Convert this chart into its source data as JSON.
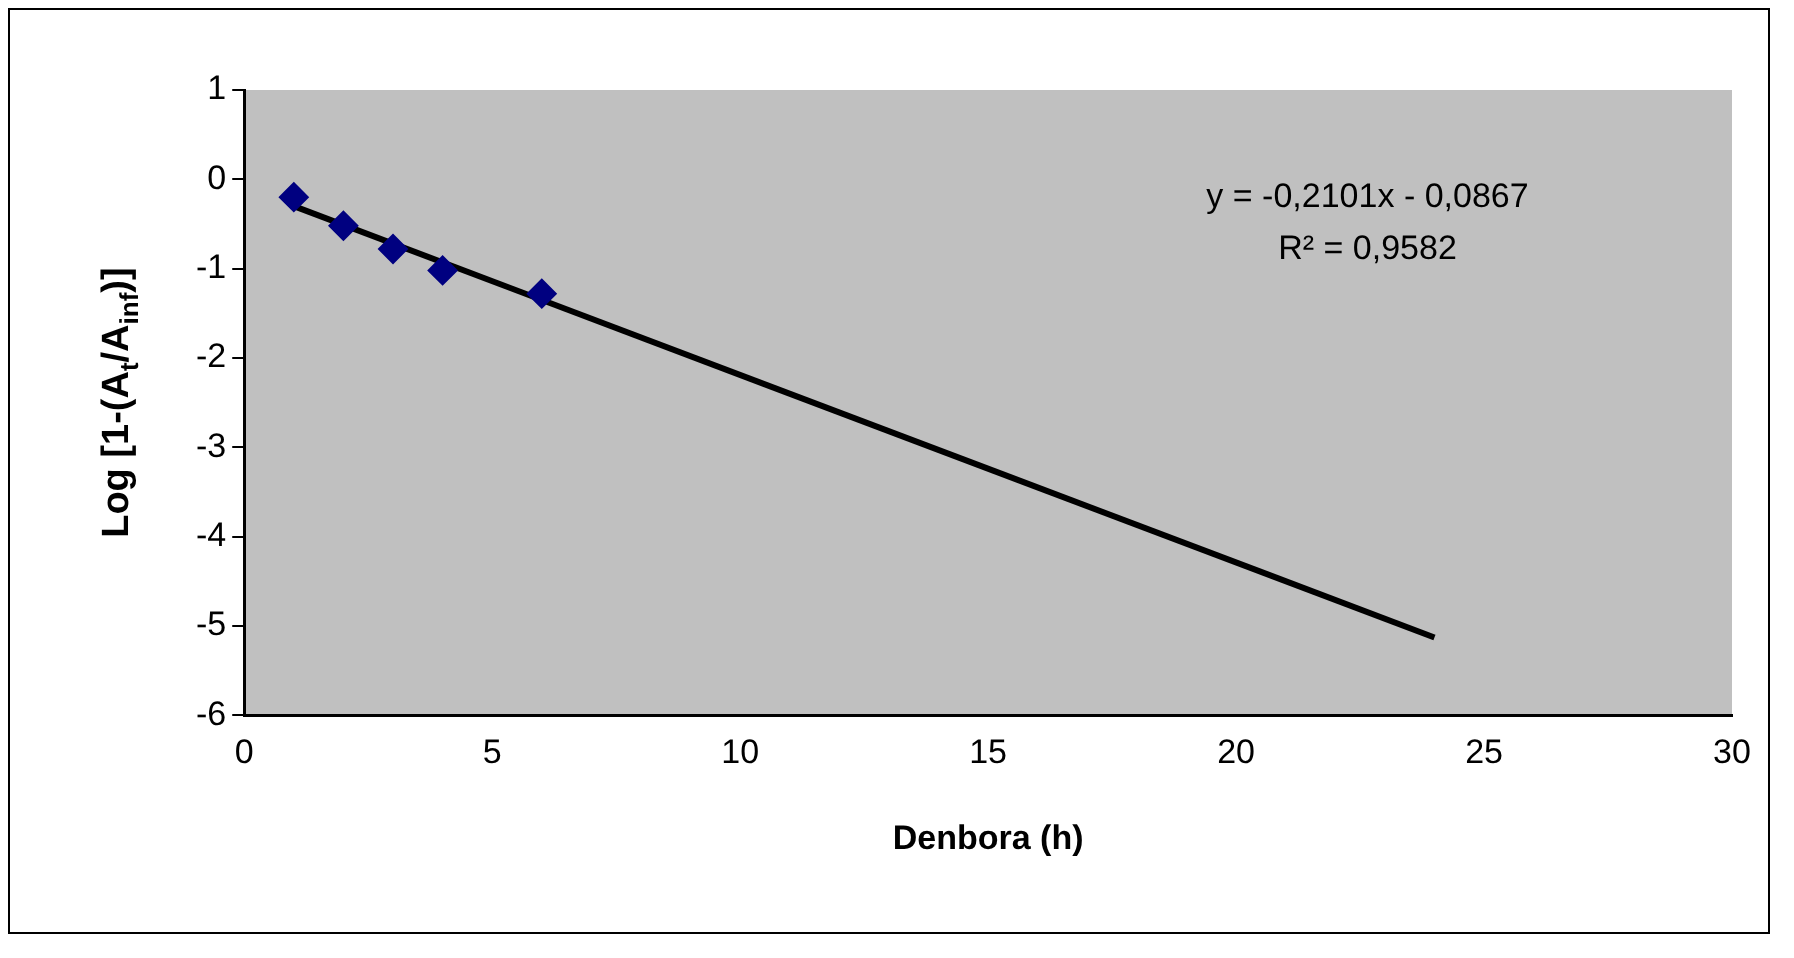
{
  "chart_data": {
    "type": "scatter",
    "xlabel": "Denbora (h)",
    "ylabel": "Log [1-(A$_{t}$/A$_{inf}$)]",
    "series": [
      {
        "color": "#000080",
        "marker": "diamond",
        "x": [
          1,
          2,
          3,
          4,
          6
        ],
        "values": [
          -0.2,
          -0.52,
          -0.78,
          -1.02,
          -1.28
        ]
      },
      {
        "type": "line",
        "color": "#000000",
        "marker": "none",
        "x": [
          1,
          24
        ],
        "values": [
          -0.3,
          -5.13
        ]
      }
    ],
    "annotations": [
      "y = -0,2101x - 0,0867",
      "R² = 0,9582"
    ],
    "xlim": [
      0,
      30
    ],
    "xticks": [
      0,
      5,
      10,
      15,
      20,
      25,
      30
    ],
    "ylim": [
      -6,
      1
    ],
    "yticks": [
      -6,
      -5,
      -4,
      -3,
      -2,
      -1,
      0,
      1
    ],
    "grid": false,
    "legend": false
  }
}
